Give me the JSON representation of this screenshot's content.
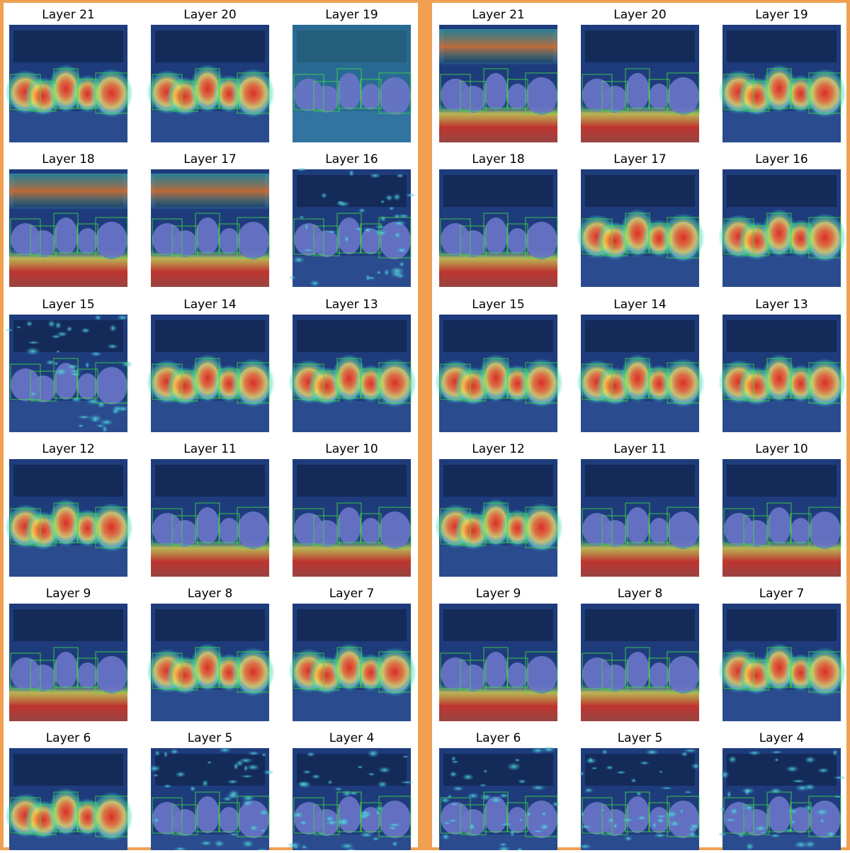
{
  "panels": [
    {
      "cells": [
        {
          "title": "Layer 21"
        },
        {
          "title": "Layer 20"
        },
        {
          "title": "Layer 19"
        },
        {
          "title": "Layer 18"
        },
        {
          "title": "Layer 17"
        },
        {
          "title": "Layer 16"
        },
        {
          "title": "Layer 15"
        },
        {
          "title": "Layer 14"
        },
        {
          "title": "Layer 13"
        },
        {
          "title": "Layer 12"
        },
        {
          "title": "Layer 11"
        },
        {
          "title": "Layer 10"
        },
        {
          "title": "Layer 9"
        },
        {
          "title": "Layer 8"
        },
        {
          "title": "Layer 7"
        },
        {
          "title": "Layer 6"
        },
        {
          "title": "Layer 5"
        },
        {
          "title": "Layer 4"
        }
      ]
    },
    {
      "cells": [
        {
          "title": "Layer 21"
        },
        {
          "title": "Layer 20"
        },
        {
          "title": "Layer 19"
        },
        {
          "title": "Layer 18"
        },
        {
          "title": "Layer 17"
        },
        {
          "title": "Layer 16"
        },
        {
          "title": "Layer 15"
        },
        {
          "title": "Layer 14"
        },
        {
          "title": "Layer 13"
        },
        {
          "title": "Layer 12"
        },
        {
          "title": "Layer 11"
        },
        {
          "title": "Layer 10"
        },
        {
          "title": "Layer 9"
        },
        {
          "title": "Layer 8"
        },
        {
          "title": "Layer 7"
        },
        {
          "title": "Layer 6"
        },
        {
          "title": "Layer 5"
        },
        {
          "title": "Layer 4"
        }
      ]
    }
  ]
}
